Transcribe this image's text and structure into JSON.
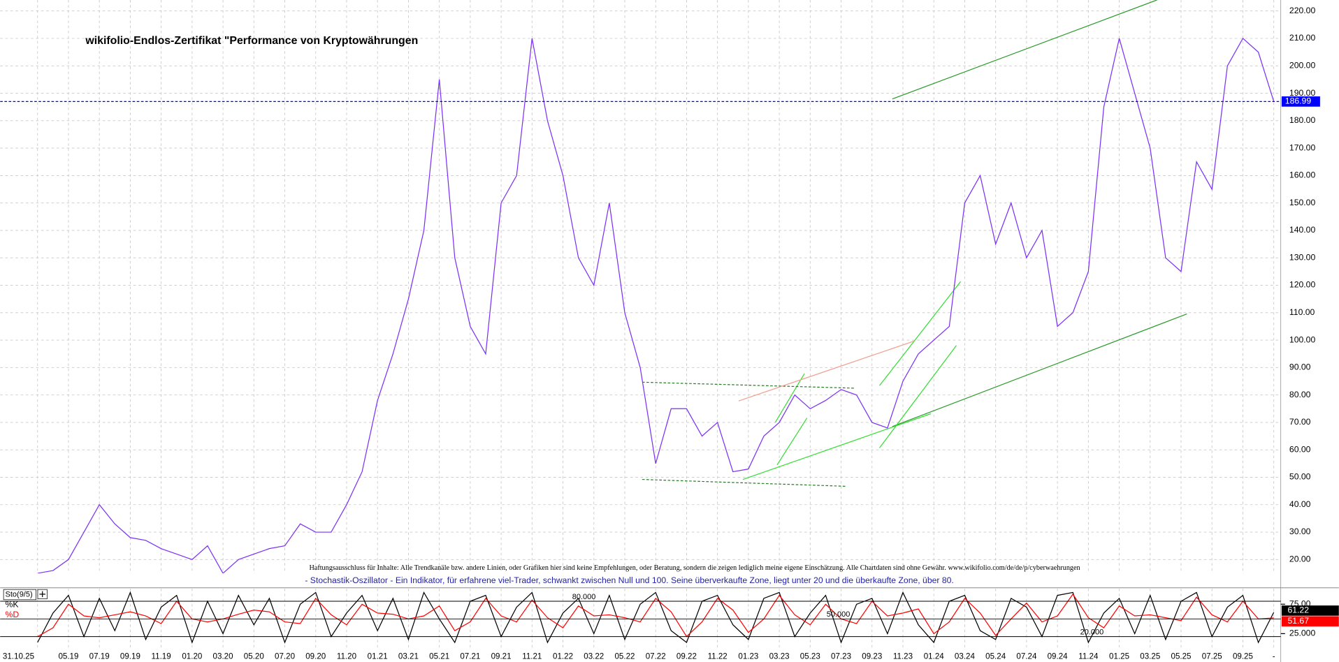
{
  "chart_data": [
    {
      "type": "line",
      "title": "wikifolio-Endlos-Zertifikat \"Performance von Kryptowährungen",
      "categories": [
        "31.10.25",
        null,
        "05.19",
        null,
        "07.19",
        null,
        "09.19",
        null,
        "11.19",
        null,
        "01.20",
        null,
        "03.20",
        null,
        "05.20",
        null,
        "07.20",
        null,
        "09.20",
        null,
        "11.20",
        null,
        "01.21",
        null,
        "03.21",
        null,
        "05.21",
        null,
        "07.21",
        null,
        "09.21",
        null,
        "11.21",
        null,
        "01.22",
        null,
        "03.22",
        null,
        "05.22",
        null,
        "07.22",
        null,
        "09.22",
        null,
        "11.22",
        null,
        "01.23",
        null,
        "03.23",
        null,
        "05.23",
        null,
        "07.23",
        null,
        "09.23",
        null,
        "11.23",
        null,
        "01.24",
        null,
        "03.24",
        null,
        "05.24",
        null,
        "07.24",
        null,
        "09.24",
        null,
        "11.24",
        null,
        "01.25",
        null,
        "03.25",
        null,
        "05.25",
        null,
        "07.25",
        null,
        "09.25",
        null,
        "-"
      ],
      "values": [
        15,
        16,
        20,
        30,
        40,
        33,
        28,
        27,
        24,
        22,
        20,
        25,
        15,
        20,
        22,
        24,
        25,
        33,
        30,
        30,
        40,
        52,
        78,
        95,
        115,
        140,
        195,
        130,
        105,
        95,
        150,
        160,
        210,
        180,
        160,
        130,
        120,
        150,
        110,
        90,
        55,
        75,
        75,
        65,
        70,
        52,
        53,
        65,
        70,
        80,
        75,
        78,
        82,
        80,
        70,
        68,
        85,
        95,
        100,
        105,
        150,
        160,
        135,
        150,
        130,
        140,
        105,
        110,
        125,
        185,
        210,
        190,
        170,
        130,
        125,
        165,
        155,
        200,
        210,
        205,
        187
      ],
      "color": "#7b2ff7",
      "ylim": [
        15,
        224
      ],
      "yticks": [
        {
          "value": 20,
          "label": "20.00"
        },
        {
          "value": 30,
          "label": "30.00"
        },
        {
          "value": 40,
          "label": "40.00"
        },
        {
          "value": 50,
          "label": "50.00"
        },
        {
          "value": 60,
          "label": "60.00"
        },
        {
          "value": 70,
          "label": "70.00"
        },
        {
          "value": 80,
          "label": "80.00"
        },
        {
          "value": 90,
          "label": "90.00"
        },
        {
          "value": 100,
          "label": "100.00"
        },
        {
          "value": 110,
          "label": "110.00"
        },
        {
          "value": 120,
          "label": "120.00"
        },
        {
          "value": 130,
          "label": "130.00"
        },
        {
          "value": 140,
          "label": "140.00"
        },
        {
          "value": 150,
          "label": "150.00"
        },
        {
          "value": 160,
          "label": "160.00"
        },
        {
          "value": 170,
          "label": "170.00"
        },
        {
          "value": 180,
          "label": "180.00"
        },
        {
          "value": 190,
          "label": "190.00"
        },
        {
          "value": 200,
          "label": "200.00"
        },
        {
          "value": 210,
          "label": "210.00"
        },
        {
          "value": 220,
          "label": "220.00"
        }
      ],
      "grid": true,
      "last_value": 186.99,
      "last_value_color": "#0000ff",
      "disclaimer": "Haftungsausschluss für Inhalte: Alle Trendkanäle bzw. andere Linien, oder Grafiken hier sind keine Empfehlungen, oder Beratung, sondern die zeigen lediglich meine eigene Einschätzung. Alle Chartdaten sind ohne Gewähr.  www.wikifolio.com/de/de/p/cyberwaehrungen",
      "description": "- Stochastik-Oszillator - Ein Indikator, für erfahrene viel-Trader, schwankt zwischen Null und 100. Seine überverkaufte Zone, liegt unter 20 und die überkaufte Zone, über 80."
    },
    {
      "type": "line",
      "title": "Sto(9/5)",
      "series": [
        {
          "name": "%K",
          "color": "#000000",
          "values": [
            10,
            60,
            90,
            20,
            85,
            30,
            95,
            15,
            70,
            90,
            10,
            80,
            25,
            90,
            40,
            85,
            10,
            75,
            95,
            20,
            60,
            90,
            30,
            85,
            15,
            95,
            50,
            10,
            80,
            90,
            20,
            70,
            95,
            10,
            60,
            85,
            25,
            90,
            15,
            75,
            95,
            30,
            10,
            80,
            90,
            40,
            15,
            85,
            95,
            20,
            60,
            90,
            10,
            75,
            85,
            25,
            95,
            40,
            10,
            80,
            90,
            30,
            15,
            85,
            70,
            20,
            90,
            95,
            10,
            60,
            85,
            25,
            90,
            15,
            80,
            95,
            20,
            70,
            90,
            10,
            61.22
          ]
        },
        {
          "name": "%D",
          "color": "#ff0000",
          "values": [
            20,
            35,
            75,
            55,
            52,
            57,
            62,
            55,
            42,
            80,
            50,
            45,
            50,
            58,
            65,
            62,
            45,
            42,
            85,
            57,
            40,
            75,
            60,
            58,
            50,
            55,
            72,
            30,
            45,
            85,
            55,
            45,
            82,
            52,
            35,
            72,
            55,
            57,
            52,
            45,
            85,
            62,
            20,
            45,
            85,
            65,
            27,
            50,
            90,
            57,
            40,
            75,
            50,
            42,
            80,
            55,
            60,
            67,
            25,
            45,
            85,
            60,
            22,
            50,
            77,
            45,
            55,
            92,
            52,
            35,
            72,
            55,
            57,
            52,
            47,
            87,
            57,
            45,
            80,
            50,
            51.67
          ]
        }
      ],
      "ylim": [
        0,
        100
      ],
      "yticks": [
        {
          "value": 25,
          "label": "25.000"
        },
        {
          "value": 75,
          "label": "75.00"
        }
      ],
      "levels": [
        {
          "value": 80,
          "label": "80.000"
        },
        {
          "value": 50,
          "label": "50.000"
        },
        {
          "value": 20,
          "label": "20.000"
        }
      ]
    }
  ]
}
